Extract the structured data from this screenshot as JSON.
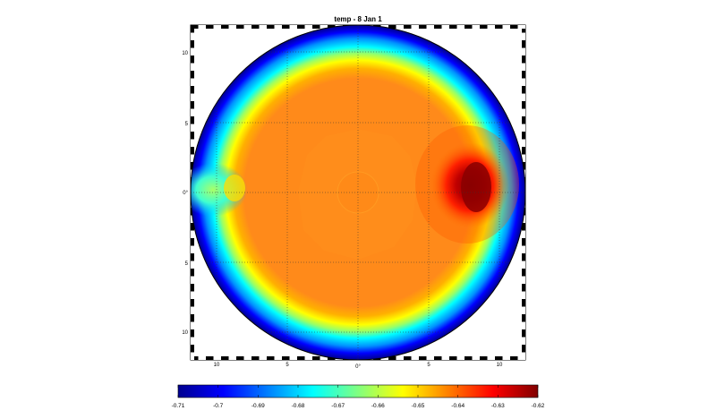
{
  "chart_data": {
    "type": "heatmap",
    "title": "temp - 8 Jan 1",
    "projection": "polar stereographic (circular map frame)",
    "grid": true,
    "y_tick_labels": [
      "10",
      "5",
      "0°",
      "5",
      "10"
    ],
    "x_tick_labels": [
      "10",
      "5",
      "0°",
      "5",
      "10"
    ],
    "colormap": "jet",
    "colorbar": {
      "orientation": "horizontal",
      "placement": "bottom",
      "range": [
        -0.71,
        -0.62
      ],
      "ticks": [
        "-0.71",
        "-0.7",
        "-0.69",
        "-0.68",
        "-0.67",
        "-0.66",
        "-0.65",
        "-0.64",
        "-0.63",
        "-0.62"
      ]
    },
    "field": {
      "interior_value": -0.642,
      "center_value": -0.644,
      "edge_value": -0.71,
      "hotspot": {
        "location": "right of center",
        "value": -0.62
      },
      "cold_inlet": {
        "location": "left edge at 0°",
        "value": -0.69
      }
    }
  },
  "colors": {
    "jet": [
      "#00008f",
      "#0000ff",
      "#0080ff",
      "#00ffff",
      "#80ff80",
      "#ffff00",
      "#ff8000",
      "#ff0000",
      "#800000"
    ]
  }
}
